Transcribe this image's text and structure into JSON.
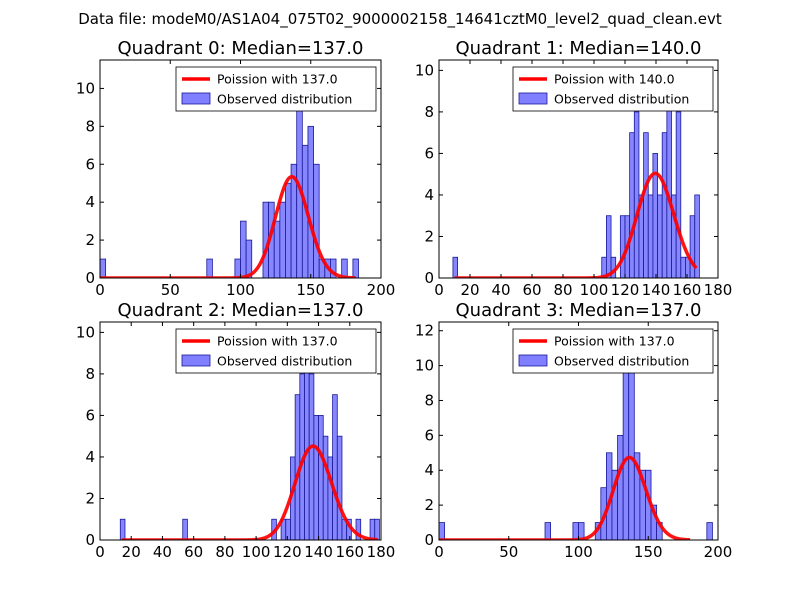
{
  "figure_title": "Data file: modeM0/AS1A04_075T02_9000002158_14641cztM0_level2_quad_clean.evt",
  "colors": {
    "bar_fill": "#7f7fff",
    "bar_edge": "#1a1a99",
    "curve": "#ff0000"
  },
  "chart_data": [
    {
      "type": "bar",
      "title": "Quadrant 0: Median=137.0",
      "xlim": [
        0,
        200
      ],
      "ylim": [
        0,
        11.5
      ],
      "xticks": [
        0,
        50,
        100,
        150,
        200
      ],
      "yticks": [
        0,
        2,
        4,
        6,
        8,
        10
      ],
      "bin_width": 4,
      "bars": [
        [
          0,
          1
        ],
        [
          76,
          1
        ],
        [
          96,
          1
        ],
        [
          100,
          3
        ],
        [
          104,
          2
        ],
        [
          116,
          4
        ],
        [
          120,
          4
        ],
        [
          124,
          3
        ],
        [
          128,
          4
        ],
        [
          132,
          5
        ],
        [
          136,
          6
        ],
        [
          140,
          10
        ],
        [
          144,
          7
        ],
        [
          148,
          8
        ],
        [
          152,
          6
        ],
        [
          156,
          1
        ],
        [
          160,
          1
        ],
        [
          164,
          1
        ],
        [
          172,
          1
        ],
        [
          180,
          1
        ]
      ],
      "curve": {
        "mean": 137.0,
        "x_from": 0,
        "x_to": 182
      },
      "legend": [
        "Poission with 137.0",
        "Observed distribution"
      ]
    },
    {
      "type": "bar",
      "title": "Quadrant 1: Median=140.0",
      "xlim": [
        0,
        180
      ],
      "ylim": [
        0,
        10.5
      ],
      "xticks": [
        0,
        20,
        40,
        60,
        80,
        100,
        120,
        140,
        160,
        180
      ],
      "yticks": [
        0,
        2,
        4,
        6,
        8,
        10
      ],
      "bin_width": 3,
      "bars": [
        [
          9,
          1
        ],
        [
          105,
          1
        ],
        [
          108,
          3
        ],
        [
          111,
          1
        ],
        [
          117,
          3
        ],
        [
          120,
          3
        ],
        [
          123,
          7
        ],
        [
          126,
          8
        ],
        [
          129,
          4
        ],
        [
          132,
          7
        ],
        [
          135,
          4
        ],
        [
          138,
          6
        ],
        [
          141,
          4
        ],
        [
          144,
          7
        ],
        [
          147,
          9
        ],
        [
          150,
          4
        ],
        [
          153,
          8
        ],
        [
          156,
          1
        ],
        [
          159,
          1
        ],
        [
          162,
          3
        ],
        [
          165,
          4
        ]
      ],
      "curve": {
        "mean": 140.0,
        "x_from": 10,
        "x_to": 166
      },
      "legend": [
        "Poission with 140.0",
        "Observed distribution"
      ]
    },
    {
      "type": "bar",
      "title": "Quadrant 2: Median=137.0",
      "xlim": [
        0,
        180
      ],
      "ylim": [
        0,
        10.5
      ],
      "xticks": [
        0,
        20,
        40,
        60,
        80,
        100,
        120,
        140,
        160,
        180
      ],
      "yticks": [
        0,
        2,
        4,
        6,
        8,
        10
      ],
      "bin_width": 3,
      "bars": [
        [
          13,
          1
        ],
        [
          53,
          1
        ],
        [
          110,
          1
        ],
        [
          116,
          1
        ],
        [
          119,
          1
        ],
        [
          122,
          4
        ],
        [
          125,
          7
        ],
        [
          128,
          8
        ],
        [
          131,
          9
        ],
        [
          134,
          8
        ],
        [
          137,
          6
        ],
        [
          140,
          6
        ],
        [
          143,
          5
        ],
        [
          146,
          4
        ],
        [
          149,
          7
        ],
        [
          152,
          5
        ],
        [
          155,
          1
        ],
        [
          158,
          1
        ],
        [
          164,
          1
        ],
        [
          173,
          1
        ],
        [
          176,
          1
        ]
      ],
      "curve": {
        "mean": 137.0,
        "x_from": 14,
        "x_to": 178
      },
      "legend": [
        "Poission with 137.0",
        "Observed distribution"
      ]
    },
    {
      "type": "bar",
      "title": "Quadrant 3: Median=137.0",
      "xlim": [
        0,
        200
      ],
      "ylim": [
        0,
        12.5
      ],
      "xticks": [
        0,
        50,
        100,
        150,
        200
      ],
      "yticks": [
        0,
        2,
        4,
        6,
        8,
        10,
        12
      ],
      "bin_width": 4,
      "bars": [
        [
          0,
          1
        ],
        [
          76,
          1
        ],
        [
          96,
          1
        ],
        [
          100,
          1
        ],
        [
          112,
          1
        ],
        [
          116,
          3
        ],
        [
          120,
          5
        ],
        [
          124,
          4
        ],
        [
          128,
          6
        ],
        [
          132,
          12
        ],
        [
          136,
          10
        ],
        [
          140,
          5
        ],
        [
          144,
          4
        ],
        [
          148,
          4
        ],
        [
          152,
          2
        ],
        [
          156,
          1
        ],
        [
          192,
          1
        ]
      ],
      "curve": {
        "mean": 137.0,
        "x_from": 0,
        "x_to": 180
      },
      "legend": [
        "Poission with 137.0",
        "Observed distribution"
      ]
    }
  ]
}
